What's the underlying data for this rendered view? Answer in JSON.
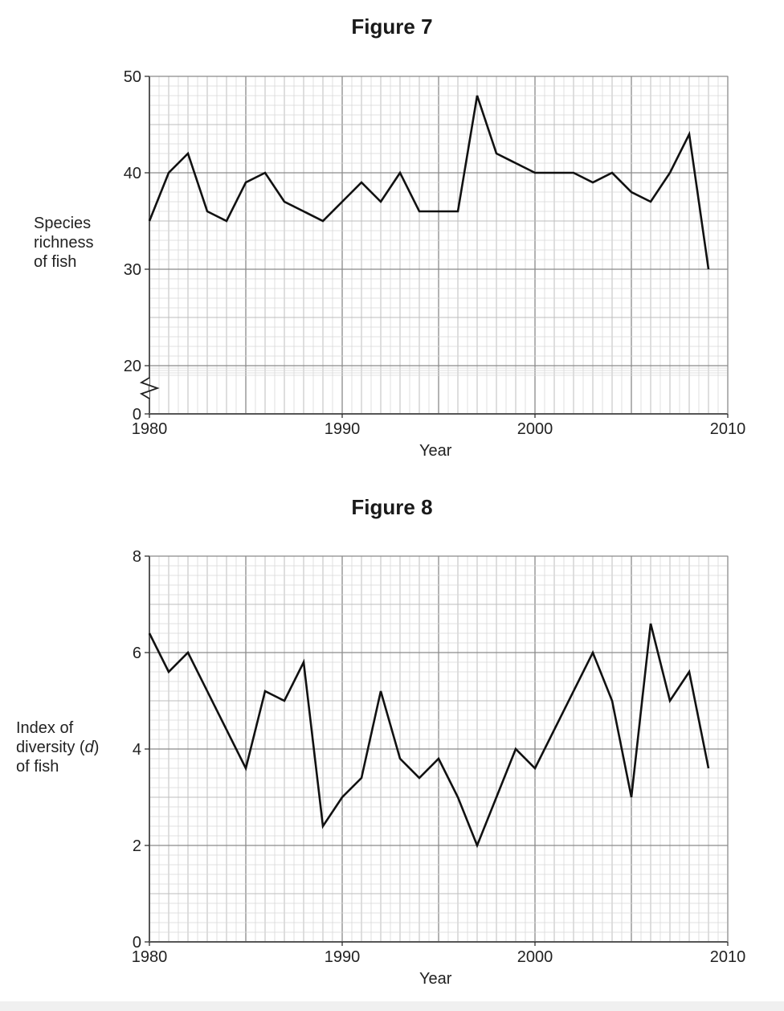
{
  "figures": [
    {
      "title": "Figure 7",
      "ylabel_lines": [
        "Species",
        "richness",
        "of fish"
      ],
      "xlabel": "Year"
    },
    {
      "title": "Figure 8",
      "ylabel_lines": [
        "Index of",
        "diversity (d)",
        "of fish"
      ],
      "xlabel": "Year"
    }
  ],
  "chart_data": [
    {
      "type": "line",
      "title": "Figure 7",
      "xlabel": "Year",
      "ylabel": "Species richness of fish",
      "xlim": [
        1980,
        2010
      ],
      "ylim": [
        0,
        50
      ],
      "axis_break": "between 0 and 20",
      "x_ticks": [
        1980,
        1990,
        2000,
        2010
      ],
      "y_ticks": [
        0,
        20,
        30,
        40,
        50
      ],
      "grid": true,
      "x": [
        1980,
        1981,
        1982,
        1983,
        1984,
        1985,
        1986,
        1987,
        1988,
        1989,
        1990,
        1991,
        1992,
        1993,
        1994,
        1995,
        1996,
        1997,
        1998,
        1999,
        2000,
        2001,
        2002,
        2003,
        2004,
        2005,
        2006,
        2007,
        2008,
        2009
      ],
      "values": [
        35,
        40,
        42,
        36,
        35,
        39,
        40,
        37,
        36,
        35,
        37,
        39,
        37,
        40,
        36,
        36,
        36,
        48,
        42,
        41,
        40,
        40,
        40,
        39,
        40,
        38,
        37,
        40,
        44,
        30
      ]
    },
    {
      "type": "line",
      "title": "Figure 8",
      "xlabel": "Year",
      "ylabel": "Index of diversity (d) of fish",
      "xlim": [
        1980,
        2010
      ],
      "ylim": [
        0,
        8
      ],
      "x_ticks": [
        1980,
        1990,
        2000,
        2010
      ],
      "y_ticks": [
        0,
        2,
        4,
        6,
        8
      ],
      "grid": true,
      "x": [
        1980,
        1981,
        1982,
        1985,
        1986,
        1987,
        1988,
        1989,
        1990,
        1991,
        1992,
        1993,
        1994,
        1995,
        1996,
        1997,
        1999,
        2000,
        2003,
        2004,
        2005,
        2006,
        2007,
        2008,
        2009
      ],
      "values": [
        6.4,
        5.6,
        6.0,
        3.6,
        5.2,
        5.0,
        5.8,
        2.4,
        3.0,
        3.4,
        5.2,
        3.8,
        3.4,
        3.8,
        3.0,
        2.0,
        4.0,
        3.6,
        6.0,
        5.0,
        3.0,
        6.6,
        5.0,
        5.6,
        3.6
      ]
    }
  ]
}
